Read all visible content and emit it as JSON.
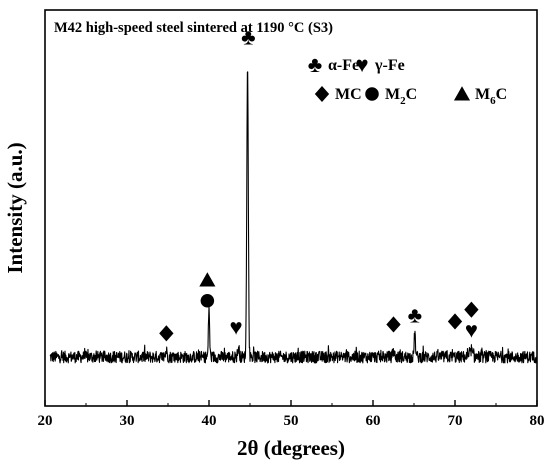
{
  "chart_data": {
    "type": "line",
    "title": "M42 high-speed steel sintered at 1190 °C (S3)",
    "xlabel": "2θ (degrees)",
    "ylabel": "Intensity (a.u.)",
    "xlim": [
      20,
      80
    ],
    "xticks": [
      "20",
      "30",
      "40",
      "50",
      "60",
      "70",
      "80"
    ],
    "y_ticks_shown": false,
    "grid": false,
    "legend_position": "top-right",
    "baseline": 0,
    "noise_amplitude": 2.0,
    "peaks": [
      {
        "x": 44.7,
        "height": 100,
        "width": 0.09
      },
      {
        "x": 40.0,
        "height": 17,
        "width": 0.07
      },
      {
        "x": 65.1,
        "height": 8,
        "width": 0.08
      },
      {
        "x": 43.6,
        "height": 3,
        "width": 0.1
      },
      {
        "x": 34.8,
        "height": 2,
        "width": 0.1
      },
      {
        "x": 72.0,
        "height": 2.5,
        "width": 0.1
      },
      {
        "x": 62.5,
        "height": 2,
        "width": 0.1
      }
    ],
    "legend": [
      {
        "marker": "club",
        "label": "α-Fe"
      },
      {
        "marker": "heart",
        "label": "γ-Fe"
      },
      {
        "marker": "diamond",
        "label": "MC"
      },
      {
        "marker": "circle",
        "label": "M",
        "subscript": "2",
        "suffix": "C"
      },
      {
        "marker": "triangle",
        "label": "M",
        "subscript": "6",
        "suffix": "C"
      }
    ],
    "annotations": [
      {
        "marker": "club",
        "x": 44.8,
        "level": 108
      },
      {
        "marker": "triangle",
        "x": 39.8,
        "level": 26
      },
      {
        "marker": "circle",
        "x": 39.8,
        "level": 19
      },
      {
        "marker": "heart",
        "x": 43.3,
        "level": 10
      },
      {
        "marker": "diamond",
        "x": 34.8,
        "level": 8
      },
      {
        "marker": "diamond",
        "x": 62.5,
        "level": 11
      },
      {
        "marker": "club",
        "x": 65.1,
        "level": 14
      },
      {
        "marker": "diamond",
        "x": 70.0,
        "level": 12
      },
      {
        "marker": "diamond",
        "x": 72.0,
        "level": 16
      },
      {
        "marker": "heart",
        "x": 72.0,
        "level": 9
      }
    ]
  }
}
